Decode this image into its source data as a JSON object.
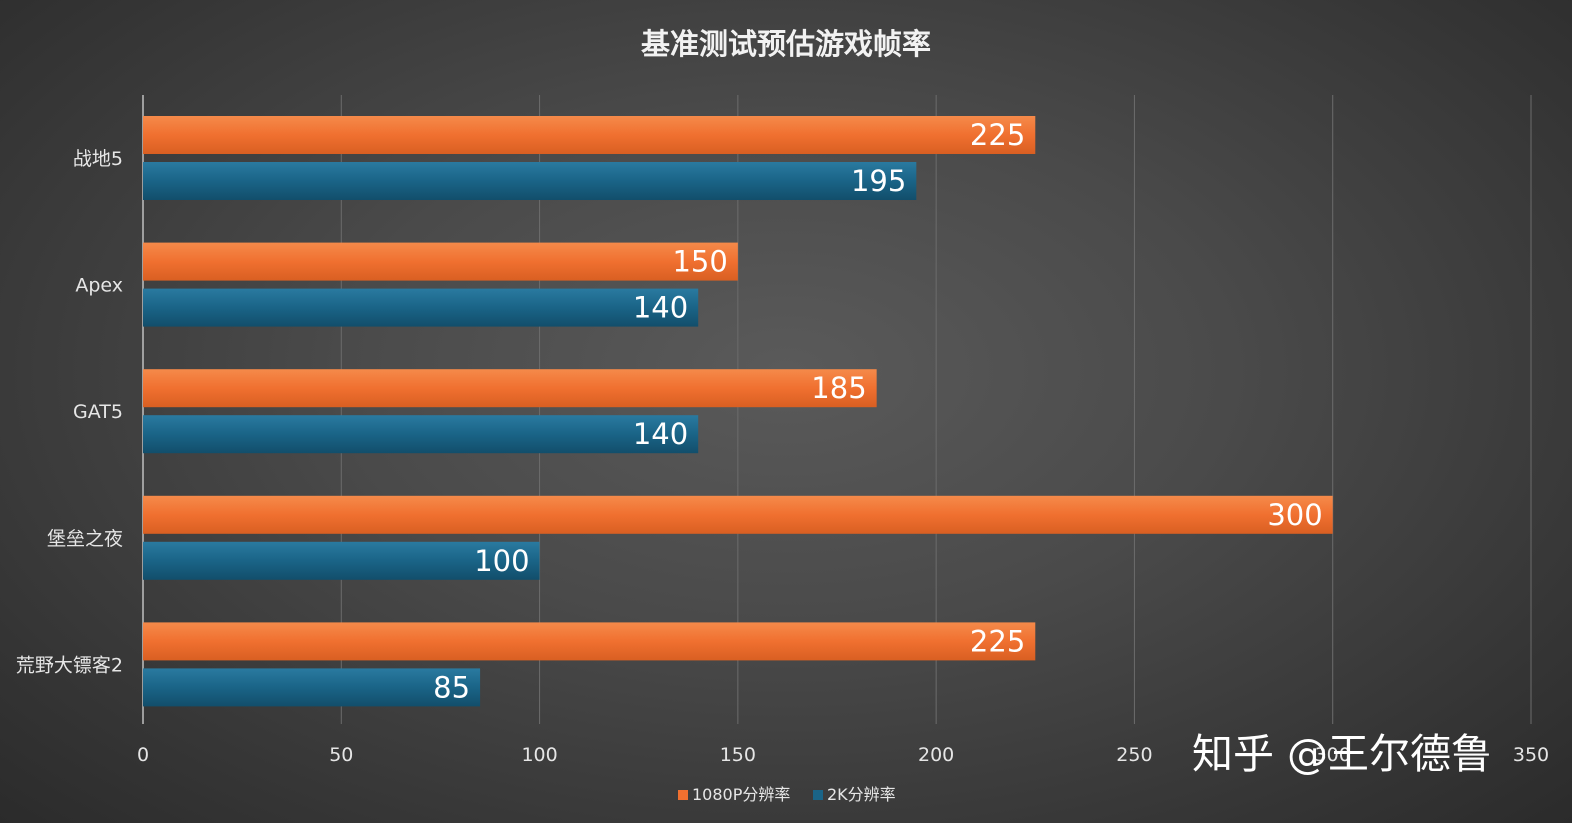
{
  "chart_data": {
    "type": "bar",
    "orientation": "horizontal",
    "title": "基准测试预估游戏帧率",
    "categories": [
      "战地5",
      "Apex",
      "GAT5",
      "堡垒之夜",
      "荒野大镖客2"
    ],
    "series": [
      {
        "name": "1080P分辨率",
        "color": "#f07030",
        "values": [
          225,
          150,
          185,
          300,
          225
        ]
      },
      {
        "name": "2K分辨率",
        "color": "#1a6487",
        "values": [
          195,
          140,
          140,
          100,
          85
        ]
      }
    ],
    "xlim": [
      0,
      350
    ],
    "x_ticks": [
      "0",
      "50",
      "100",
      "150",
      "200",
      "250",
      "300",
      "350"
    ],
    "grid": true,
    "legend_position": "bottom"
  },
  "watermark": {
    "text": "知乎 @王尔德鲁"
  }
}
